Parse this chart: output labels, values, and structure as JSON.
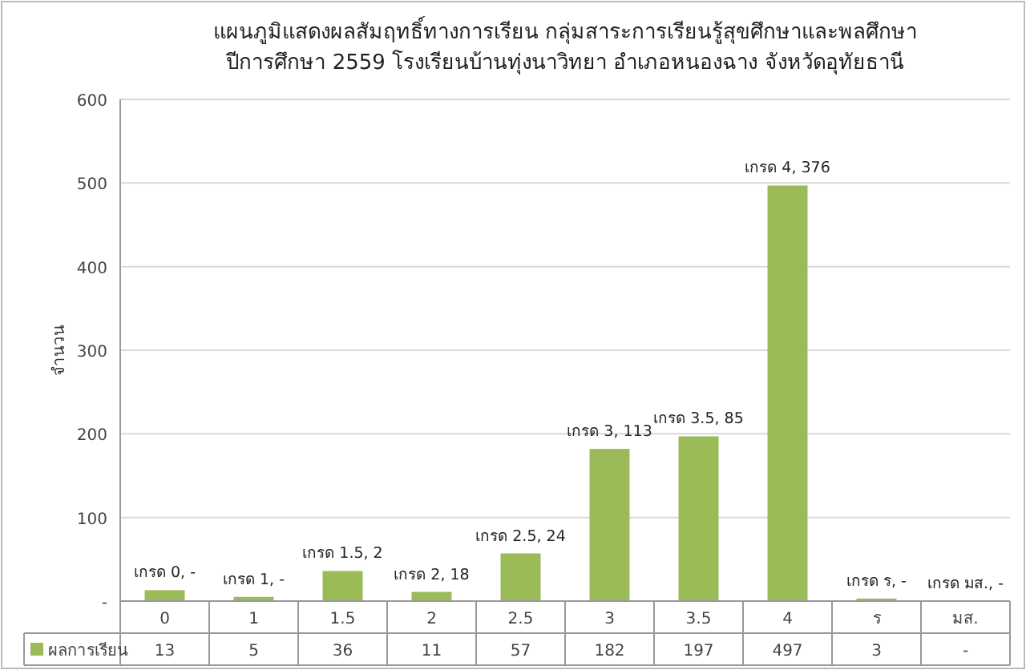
{
  "chart_data": {
    "type": "bar",
    "title": "แผนภูมิแสดงผลสัมฤทธิ์ทางการเรียน กลุ่มสาระการเรียนรู้สุขศึกษาและพลศึกษา\nปีการศึกษา 2559 โรงเรียนบ้านทุ่งนาวิทยา อำเภอหนองฉาง จังหวัดอุทัยธานี",
    "ylabel": "จำนวน",
    "categories": [
      "0",
      "1",
      "1.5",
      "2",
      "2.5",
      "3",
      "3.5",
      "4",
      "ร",
      "มส."
    ],
    "series": [
      {
        "name": "ผลการเรียน",
        "color": "#9bbb59",
        "values": [
          13,
          5,
          36,
          11,
          57,
          182,
          197,
          497,
          3,
          null
        ],
        "value_labels": [
          "13",
          "5",
          "36",
          "11",
          "57",
          "182",
          "197",
          "497",
          "3",
          "-"
        ]
      }
    ],
    "annotations": [
      {
        "text": "เกรด 0, -",
        "x": "0",
        "y": 13
      },
      {
        "text": "เกรด 1, -",
        "x": "1",
        "y": 5
      },
      {
        "text": "เกรด 1.5, 2",
        "x": "1.5",
        "y": 36
      },
      {
        "text": "เกรด 2, 18",
        "x": "2",
        "y": 11
      },
      {
        "text": "เกรด 2.5, 24",
        "x": "2.5",
        "y": 57
      },
      {
        "text": "เกรด 3, 113",
        "x": "3",
        "y": 182
      },
      {
        "text": "เกรด 3.5, 85",
        "x": "3.5",
        "y": 197
      },
      {
        "text": "เกรด 4, 376",
        "x": "4",
        "y": 497
      },
      {
        "text": "เกรด ร, -",
        "x": "ร",
        "y": 3
      },
      "เกรด มส., -"
    ],
    "ylim": [
      0,
      600
    ],
    "yticks": [
      {
        "value": 0,
        "label": "-"
      },
      100,
      200,
      300,
      400,
      500,
      600
    ],
    "grid": "y",
    "legend": "bottom"
  }
}
